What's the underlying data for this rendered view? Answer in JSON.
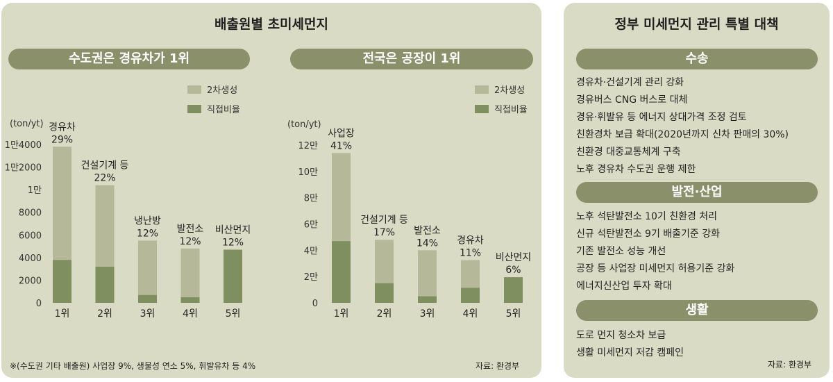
{
  "left": {
    "title": "배출원별 초미세먼지",
    "footnote": "※(수도권 기타 배출원) 사업장 9%, 생물성 연소 5%, 휘발유차 등 4%",
    "source": "자료: 환경부"
  },
  "colors": {
    "secondary": "#b5b99a",
    "direct": "#7f8f5f",
    "pill": "#8a906a",
    "panel": "#d9dbc4"
  },
  "chart_data": [
    {
      "type": "bar",
      "title": "수도권은 경유차가 1위",
      "ylabel": "(ton/yt)",
      "ylim": [
        0,
        14000
      ],
      "yticks": [
        0,
        2000,
        4000,
        6000,
        8000,
        10000,
        12000,
        14000
      ],
      "ytick_labels": [
        "0",
        "2000",
        "4000",
        "6000",
        "8000",
        "1만",
        "1만2000",
        "1만4000"
      ],
      "categories": [
        "1위",
        "2위",
        "3위",
        "4위",
        "5위"
      ],
      "bar_names": [
        "경유차",
        "건설기계 등",
        "냉난방",
        "발전소",
        "비산먼지"
      ],
      "bar_pcts": [
        "29%",
        "22%",
        "12%",
        "12%",
        "12%"
      ],
      "legend": [
        "2차생성",
        "직접비율"
      ],
      "series": [
        {
          "name": "2차생성",
          "values": [
            10000,
            7200,
            4800,
            4300,
            0
          ]
        },
        {
          "name": "직접비율",
          "values": [
            3800,
            3200,
            700,
            500,
            4700
          ]
        }
      ]
    },
    {
      "type": "bar",
      "title": "전국은 공장이 1위",
      "ylabel": "(ton/yt)",
      "ylim": [
        0,
        120000
      ],
      "yticks": [
        0,
        20000,
        40000,
        60000,
        80000,
        100000,
        120000
      ],
      "ytick_labels": [
        "0",
        "2만",
        "4만",
        "6만",
        "8만",
        "10만",
        "12만"
      ],
      "categories": [
        "1위",
        "2위",
        "3위",
        "4위",
        "5위"
      ],
      "bar_names": [
        "사업장",
        "건설기계 등",
        "발전소",
        "경유차",
        "비산먼지"
      ],
      "bar_pcts": [
        "41%",
        "17%",
        "14%",
        "11%",
        "6%"
      ],
      "legend": [
        "2차생성",
        "직접비율"
      ],
      "series": [
        {
          "name": "2차생성",
          "values": [
            67000,
            33000,
            35000,
            21000,
            0
          ]
        },
        {
          "name": "직접비율",
          "values": [
            47000,
            15000,
            5000,
            11500,
            19500
          ]
        }
      ]
    }
  ],
  "right": {
    "title": "정부 미세먼지 관리 특별 대책",
    "source": "자료: 환경부",
    "sections": [
      {
        "header": "수송",
        "items": [
          "경유차·건설기계 관리 강화",
          "경유버스 CNG 버스로 대체",
          "경유·휘발유 등 에너지 상대가격 조정 검토",
          "친환경차 보급 확대(2020년까지 신차 판매의 30%)",
          "친환경 대중교통체계 구축",
          "노후 경유차 수도권 운행 제한"
        ]
      },
      {
        "header": "발전·산업",
        "items": [
          "노후 석탄발전소 10기 친환경 처리",
          "신규 석탄발전소 9기 배출기준 강화",
          "기존 발전소 성능 개선",
          "공장 등 사업장 미세먼지 허용기준 강화",
          "에너지신산업 투자 확대"
        ]
      },
      {
        "header": "생활",
        "items": [
          "도로 먼지 청소차 보급",
          "생활 미세먼지 저감 캠페인"
        ]
      }
    ]
  }
}
